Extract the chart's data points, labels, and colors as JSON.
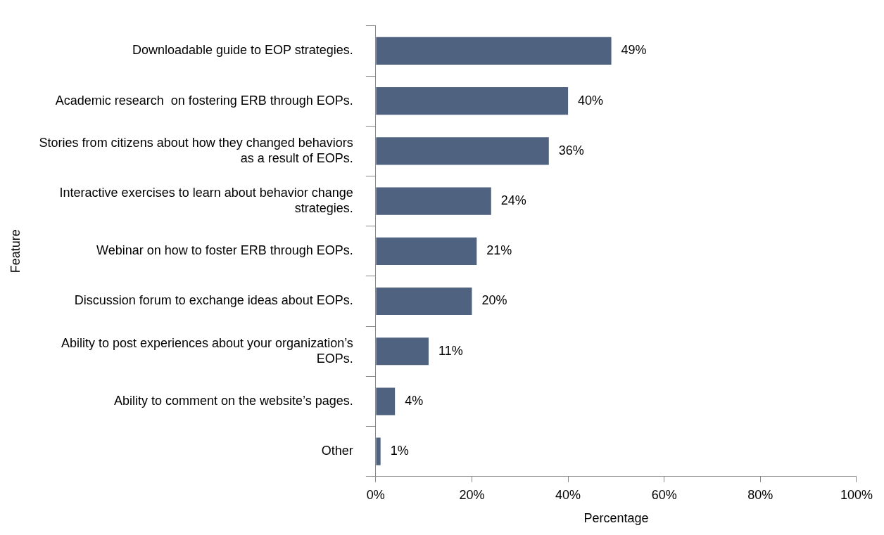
{
  "chart_data": {
    "type": "bar",
    "orientation": "horizontal",
    "xlabel": "Percentage",
    "ylabel": "Feature",
    "categories": [
      "Downloadable guide to EOP strategies.",
      "Academic research  on fostering ERB through EOPs.",
      "Stories from citizens about how they changed behaviors as a result of EOPs.",
      "Interactive exercises to learn about behavior change strategies.",
      "Webinar on how to foster ERB through EOPs.",
      "Discussion forum to exchange ideas about EOPs.",
      "Ability to post experiences about your organization’s EOPs.",
      "Ability to comment on the website’s pages.",
      "Other"
    ],
    "values": [
      49,
      40,
      36,
      24,
      21,
      20,
      11,
      4,
      1
    ],
    "value_labels": [
      "49%",
      "40%",
      "36%",
      "24%",
      "21%",
      "20%",
      "11%",
      "4%",
      "1%"
    ],
    "color": "#4f6380",
    "xlim": [
      0,
      100
    ],
    "xticks": [
      {
        "value": 0,
        "label": "0%"
      },
      {
        "value": 20,
        "label": "20%"
      },
      {
        "value": 40,
        "label": "40%"
      },
      {
        "value": 60,
        "label": "60%"
      },
      {
        "value": 80,
        "label": "80%"
      },
      {
        "value": 100,
        "label": "100%"
      }
    ],
    "grid": false,
    "legend": false
  }
}
